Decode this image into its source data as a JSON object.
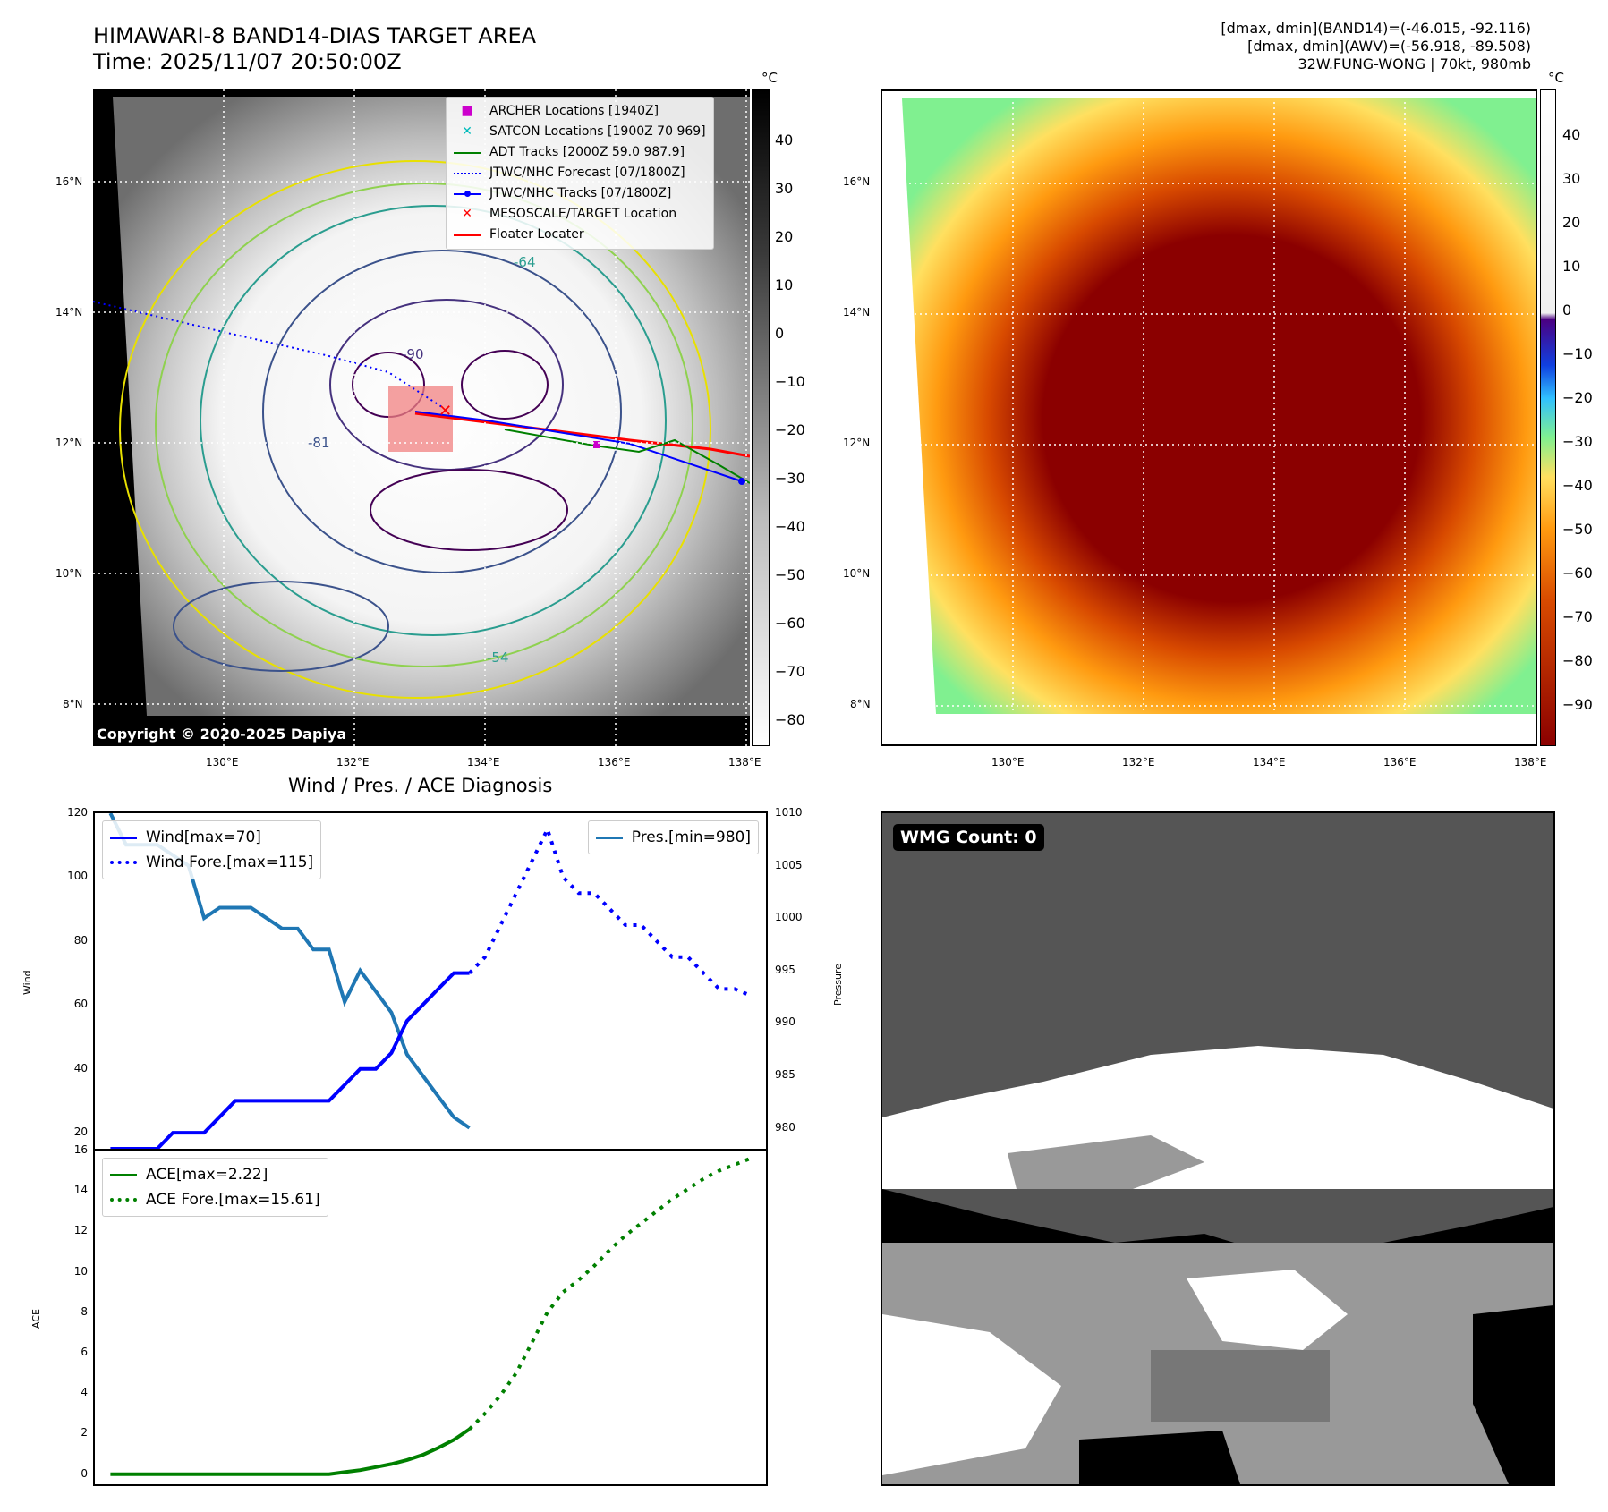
{
  "header": {
    "title_line1": "HIMAWARI-8 BAND14-DIAS TARGET AREA",
    "title_line2": "Time: 2025/11/07 20:50:00Z",
    "info_line1": "[dmax, dmin](BAND14)=(-46.015, -92.116)",
    "info_line2": "[dmax, dmin](AWV)=(-56.918, -89.508)",
    "info_line3": "32W.FUNG-WONG | 70kt, 980mb"
  },
  "map": {
    "lat_labels": [
      "16°N",
      "14°N",
      "12°N",
      "10°N",
      "8°N"
    ],
    "lon_labels": [
      "130°E",
      "132°E",
      "134°E",
      "136°E",
      "138°E"
    ],
    "copyright": "Copyright © 2020-2025 Dapiya",
    "contour_labels": [
      "-90",
      "-81",
      "-64",
      "-54"
    ],
    "legend": [
      {
        "label": "ARCHER Locations [1940Z]",
        "color": "#cc00cc",
        "marker": "square"
      },
      {
        "label": "SATCON Locations [1900Z 70 969]",
        "color": "#00bbbb",
        "marker": "x"
      },
      {
        "label": "ADT Tracks [2000Z 59.0 987.9]",
        "color": "#008000",
        "marker": "line"
      },
      {
        "label": "JTWC/NHC Forecast [07/1800Z]",
        "color": "#0000ff",
        "marker": "dotted"
      },
      {
        "label": "JTWC/NHC Tracks [07/1800Z]",
        "color": "#0000ff",
        "marker": "line-dot"
      },
      {
        "label": "MESOSCALE/TARGET Location",
        "color": "#ff0000",
        "marker": "x"
      },
      {
        "label": "Floater Locater",
        "color": "#ff0000",
        "marker": "line"
      }
    ]
  },
  "colorbar_gray": {
    "unit": "°C",
    "ticks": [
      "40",
      "30",
      "20",
      "10",
      "0",
      "−10",
      "−20",
      "−30",
      "−40",
      "−50",
      "−60",
      "−70",
      "−80"
    ]
  },
  "colorbar_awv": {
    "unit": "°C",
    "ticks": [
      "40",
      "30",
      "20",
      "10",
      "0",
      "−10",
      "−20",
      "−30",
      "−40",
      "−50",
      "−60",
      "−70",
      "−80",
      "−90"
    ]
  },
  "diagnosis": {
    "title": "Wind / Pres. / ACE Diagnosis",
    "wind_axis_label": "Wind",
    "pressure_axis_label": "Pressure",
    "ace_axis_label": "ACE",
    "wind_ticks": [
      "120",
      "100",
      "80",
      "60",
      "40",
      "20"
    ],
    "pressure_ticks": [
      "1010",
      "1005",
      "1000",
      "995",
      "990",
      "985",
      "980"
    ],
    "ace_ticks": [
      "16",
      "14",
      "12",
      "10",
      "8",
      "6",
      "4",
      "2",
      "0"
    ],
    "legend_wind": "Wind[max=70]",
    "legend_wind_fore": "Wind Fore.[max=115]",
    "legend_pres": "Pres.[min=980]",
    "legend_ace": "ACE[max=2.22]",
    "legend_ace_fore": "ACE Fore.[max=15.61]"
  },
  "wmg": {
    "badge": "WMG Count: 0"
  },
  "chart_data": [
    {
      "type": "line",
      "title": "Wind / Pres. / ACE Diagnosis",
      "ylabel": "Wind",
      "ylim": [
        15,
        120
      ],
      "xlim": [
        -1,
        42
      ],
      "series": [
        {
          "name": "Wind[max=70]",
          "style": "solid",
          "color": "#0000ff",
          "x": [
            0,
            1,
            2,
            3,
            4,
            5,
            6,
            7,
            8,
            9,
            10,
            11,
            12,
            13,
            14,
            15,
            16,
            17,
            18,
            19,
            20,
            21,
            22,
            23
          ],
          "values": [
            15,
            15,
            15,
            15,
            20,
            20,
            20,
            25,
            30,
            30,
            30,
            30,
            30,
            30,
            30,
            35,
            40,
            40,
            45,
            55,
            60,
            65,
            70,
            70
          ]
        },
        {
          "name": "Wind Fore.[max=115]",
          "style": "dotted",
          "color": "#0000ff",
          "x": [
            23,
            24,
            25,
            26,
            27,
            28,
            29,
            30,
            31,
            32,
            33,
            34,
            35,
            36,
            37,
            38,
            39,
            40,
            41
          ],
          "values": [
            70,
            75,
            85,
            95,
            105,
            115,
            100,
            95,
            95,
            90,
            85,
            85,
            80,
            75,
            75,
            70,
            65,
            65,
            63
          ]
        }
      ]
    },
    {
      "type": "line",
      "ylabel": "Pressure",
      "ylim": [
        978,
        1010
      ],
      "series": [
        {
          "name": "Pres.[min=980]",
          "style": "solid",
          "color": "#1f77b4",
          "x": [
            0,
            1,
            2,
            3,
            4,
            5,
            6,
            7,
            8,
            9,
            10,
            11,
            12,
            13,
            14,
            15,
            16,
            17,
            18,
            19,
            20,
            21,
            22,
            23
          ],
          "values": [
            1010,
            1007,
            1007,
            1007,
            1006,
            1005,
            1000,
            1001,
            1001,
            1001,
            1000,
            999,
            999,
            997,
            997,
            992,
            995,
            993,
            991,
            987,
            985,
            983,
            981,
            980
          ]
        }
      ]
    },
    {
      "type": "line",
      "ylabel": "ACE",
      "ylim": [
        -0.5,
        16
      ],
      "series": [
        {
          "name": "ACE[max=2.22]",
          "style": "solid",
          "color": "#008000",
          "x": [
            0,
            2,
            4,
            6,
            8,
            10,
            12,
            13,
            14,
            15,
            16,
            17,
            18,
            19,
            20,
            21,
            22,
            23
          ],
          "values": [
            0,
            0,
            0,
            0,
            0,
            0,
            0,
            0,
            0,
            0.1,
            0.2,
            0.35,
            0.5,
            0.7,
            0.95,
            1.3,
            1.7,
            2.22
          ]
        },
        {
          "name": "ACE Fore.[max=15.61]",
          "style": "dotted",
          "color": "#008000",
          "x": [
            23,
            24,
            25,
            26,
            27,
            28,
            29,
            30,
            31,
            32,
            33,
            34,
            35,
            36,
            37,
            38,
            39,
            40,
            41
          ],
          "values": [
            2.22,
            3.0,
            3.9,
            5.0,
            6.5,
            8.0,
            9.0,
            9.6,
            10.3,
            11.1,
            11.8,
            12.4,
            13.0,
            13.6,
            14.1,
            14.6,
            15.0,
            15.3,
            15.61
          ]
        }
      ]
    }
  ]
}
